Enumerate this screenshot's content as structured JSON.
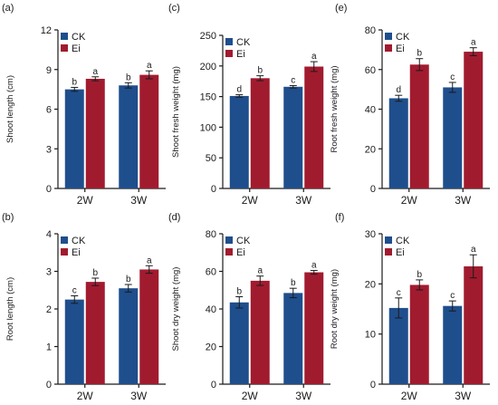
{
  "colors": {
    "ck": "#1f4e8c",
    "ei": "#a11b2f",
    "axis": "#1a1a1a"
  },
  "chart_data": [
    {
      "panel": "(a)",
      "type": "bar",
      "ylabel": "Shoot  length (cm)",
      "categories": [
        "2W",
        "3W"
      ],
      "ylim": [
        0,
        12
      ],
      "yticks": [
        0,
        3,
        6,
        9,
        12
      ],
      "series": [
        {
          "name": "CK",
          "values": [
            7.5,
            7.8
          ],
          "errors": [
            0.15,
            0.2
          ],
          "sig": [
            "b",
            "b"
          ]
        },
        {
          "name": "Ei",
          "values": [
            8.3,
            8.6
          ],
          "errors": [
            0.15,
            0.3
          ],
          "sig": [
            "a",
            "a"
          ]
        }
      ]
    },
    {
      "panel": "(c)",
      "type": "bar",
      "ylabel": "Shoot fresh weight (mg)",
      "categories": [
        "2W",
        "3W"
      ],
      "ylim": [
        0,
        250
      ],
      "yticks": [
        0,
        50,
        100,
        150,
        200,
        250
      ],
      "series": [
        {
          "name": "CK",
          "values": [
            151,
            166
          ],
          "errors": [
            2,
            2
          ],
          "sig": [
            "d",
            "c"
          ]
        },
        {
          "name": "Ei",
          "values": [
            180,
            199
          ],
          "errors": [
            4,
            8
          ],
          "sig": [
            "b",
            "a"
          ]
        }
      ]
    },
    {
      "panel": "(e)",
      "type": "bar",
      "ylabel": "Root fresh weight (mg)",
      "categories": [
        "2W",
        "3W"
      ],
      "ylim": [
        0,
        80
      ],
      "yticks": [
        0,
        20,
        40,
        60,
        80
      ],
      "series": [
        {
          "name": "CK",
          "values": [
            45.5,
            51
          ],
          "errors": [
            1.5,
            2.5
          ],
          "sig": [
            "d",
            "c"
          ]
        },
        {
          "name": "Ei",
          "values": [
            62.5,
            69
          ],
          "errors": [
            3,
            2
          ],
          "sig": [
            "b",
            "a"
          ]
        }
      ]
    },
    {
      "panel": "(b)",
      "type": "bar",
      "ylabel": "Root length (cm)",
      "categories": [
        "2W",
        "3W"
      ],
      "ylim": [
        0,
        4
      ],
      "yticks": [
        0,
        1,
        2,
        3,
        4
      ],
      "series": [
        {
          "name": "CK",
          "values": [
            2.25,
            2.55
          ],
          "errors": [
            0.1,
            0.1
          ],
          "sig": [
            "c",
            "b"
          ]
        },
        {
          "name": "Ei",
          "values": [
            2.72,
            3.05
          ],
          "errors": [
            0.1,
            0.1
          ],
          "sig": [
            "b",
            "a"
          ]
        }
      ]
    },
    {
      "panel": "(d)",
      "type": "bar",
      "ylabel": "Shoot dry weight (mg)",
      "categories": [
        "2W",
        "3W"
      ],
      "ylim": [
        0,
        80
      ],
      "yticks": [
        0,
        20,
        40,
        60,
        80
      ],
      "series": [
        {
          "name": "CK",
          "values": [
            43.5,
            48.5
          ],
          "errors": [
            3,
            2.5
          ],
          "sig": [
            "b",
            "b"
          ]
        },
        {
          "name": "Ei",
          "values": [
            55,
            59.5
          ],
          "errors": [
            2.5,
            1
          ],
          "sig": [
            "a",
            "a"
          ]
        }
      ]
    },
    {
      "panel": "(f)",
      "type": "bar",
      "ylabel": "Root dry weight (mg)",
      "categories": [
        "2W",
        "3W"
      ],
      "ylim": [
        0,
        30
      ],
      "yticks": [
        0,
        10,
        20,
        30
      ],
      "series": [
        {
          "name": "CK",
          "values": [
            15.2,
            15.6
          ],
          "errors": [
            2,
            1
          ],
          "sig": [
            "c",
            "c"
          ]
        },
        {
          "name": "Ei",
          "values": [
            19.8,
            23.5
          ],
          "errors": [
            1,
            2.3
          ],
          "sig": [
            "b",
            "a"
          ]
        }
      ]
    }
  ]
}
